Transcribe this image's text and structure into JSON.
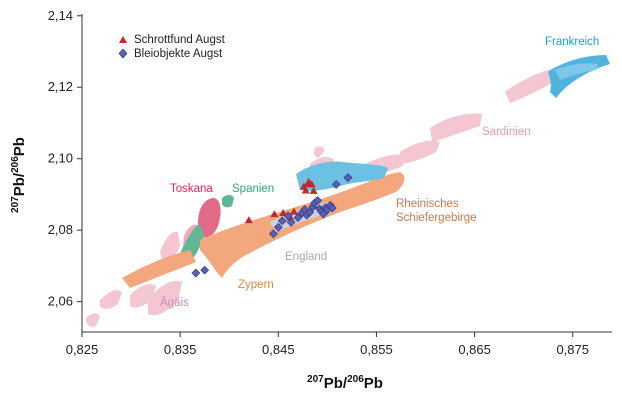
{
  "chart_data": {
    "type": "scatter",
    "title": "",
    "xlim": [
      0.825,
      0.879
    ],
    "ylim": [
      2.0515,
      2.1405
    ],
    "xticks": [
      "0,825",
      "0,835",
      "0,845",
      "0,855",
      "0,865",
      "0,875"
    ],
    "yticks": [
      "2,06",
      "2,08",
      "2,10",
      "2,12",
      "2,14"
    ],
    "xlabel": {
      "sup": "207",
      "base1": "Pb/",
      "sup2": "206",
      "base2": "Pb"
    },
    "ylabel": {
      "sup": "207",
      "base1": "Pb/",
      "sup2": "206",
      "base2": "Pb"
    },
    "legend_position": "top-left",
    "grid": false,
    "series": [
      {
        "name": "Schrottfund Augst",
        "marker": "triangle",
        "color": "#c0282d",
        "points": [
          [
            0.842,
            2.0828
          ],
          [
            0.8446,
            2.0845
          ],
          [
            0.8455,
            2.0848
          ],
          [
            0.8462,
            2.0836
          ],
          [
            0.8466,
            2.0852
          ],
          [
            0.8476,
            2.0922
          ],
          [
            0.8478,
            2.0911
          ],
          [
            0.848,
            2.093
          ],
          [
            0.8481,
            2.0935
          ],
          [
            0.8484,
            2.0928
          ],
          [
            0.8486,
            2.091
          ]
        ]
      },
      {
        "name": "Bleiobjekte Augst",
        "marker": "diamond",
        "color": "#5a60b0",
        "points": [
          [
            0.8366,
            2.068
          ],
          [
            0.8375,
            2.0688
          ],
          [
            0.8445,
            2.079
          ],
          [
            0.845,
            2.0808
          ],
          [
            0.8454,
            2.0826
          ],
          [
            0.846,
            2.084
          ],
          [
            0.8463,
            2.0822
          ],
          [
            0.847,
            2.0835
          ],
          [
            0.8474,
            2.0848
          ],
          [
            0.8477,
            2.0858
          ],
          [
            0.8479,
            2.0842
          ],
          [
            0.8482,
            2.085
          ],
          [
            0.8485,
            2.0865
          ],
          [
            0.8487,
            2.0876
          ],
          [
            0.849,
            2.0883
          ],
          [
            0.8492,
            2.086
          ],
          [
            0.8494,
            2.0852
          ],
          [
            0.8496,
            2.0845
          ],
          [
            0.8498,
            2.0863
          ],
          [
            0.85,
            2.0857
          ],
          [
            0.8503,
            2.087
          ],
          [
            0.8505,
            2.0862
          ],
          [
            0.8509,
            2.0928
          ],
          [
            0.8521,
            2.0947
          ]
        ]
      }
    ],
    "regions": [
      {
        "name": "Frankreich",
        "color": "#1aa0d8",
        "fill": "#4fb3e0"
      },
      {
        "name": "Sardinien",
        "color": "#e39ab0",
        "fill": "#f3c3cf"
      },
      {
        "name": "Toskana",
        "color": "#d8245e",
        "fill": "#e06a88"
      },
      {
        "name": "Spanien",
        "color": "#3aa07a",
        "fill": "#5fb893"
      },
      {
        "name": "Rheinisches Schiefergebirge",
        "color": "#c57a4e",
        "fill": "#f2a77c"
      },
      {
        "name": "England",
        "color": "#a9a9a9",
        "fill": "#dcdcdc"
      },
      {
        "name": "Zypern",
        "color": "#d08a48",
        "fill": "#f2a77c"
      },
      {
        "name": "Ägäis",
        "color": "#c690b8",
        "fill": "#f4c8d2"
      }
    ]
  }
}
